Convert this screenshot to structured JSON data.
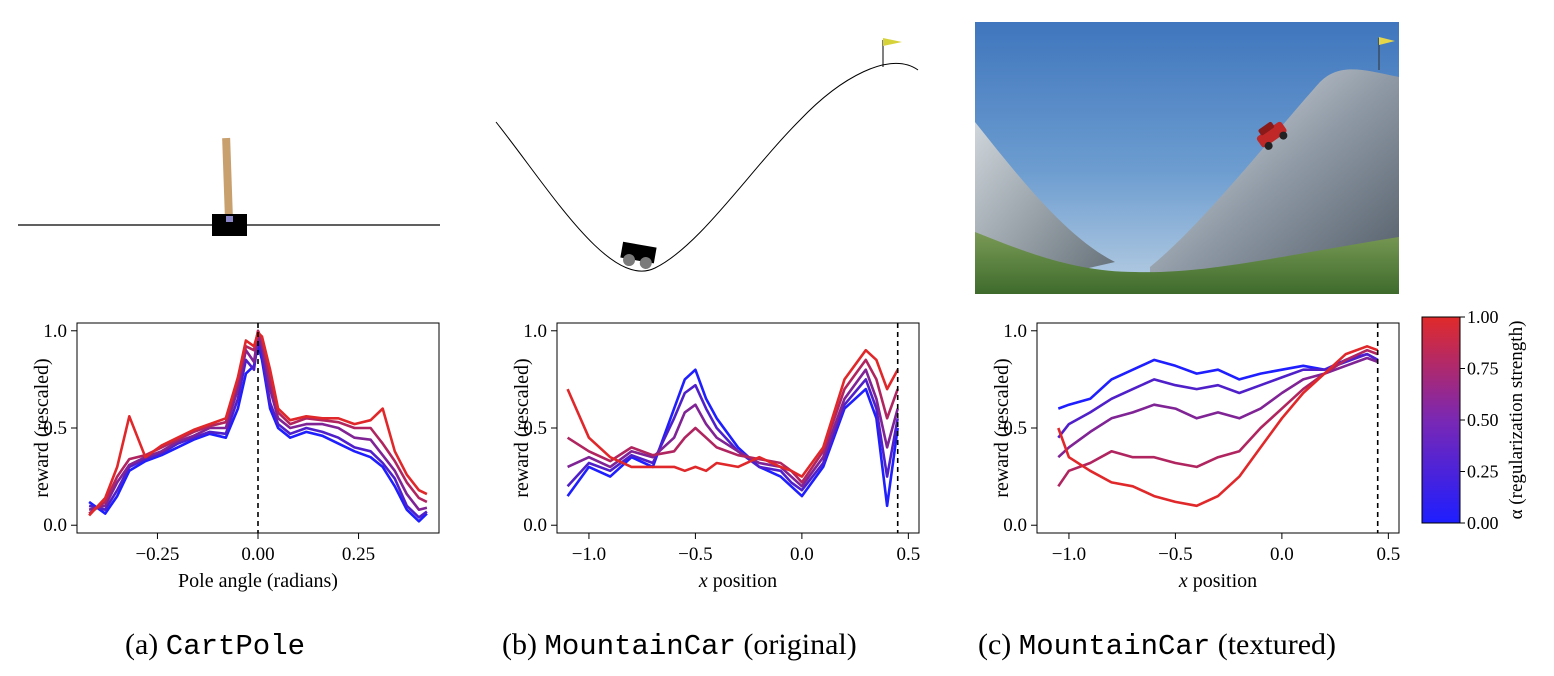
{
  "panels": [
    {
      "letter": "(a)",
      "env": "CartPole",
      "suffix": ""
    },
    {
      "letter": "(b)",
      "env": "MountainCar",
      "suffix": "(original)"
    },
    {
      "letter": "(c)",
      "env": "MountainCar",
      "suffix": "(textured)"
    }
  ],
  "colorbar": {
    "label": "α (regularization strength)",
    "ticks": [
      "0.00",
      "0.25",
      "0.50",
      "0.75",
      "1.00"
    ],
    "color_low": "#1e1eff",
    "color_high": "#e02a2a"
  },
  "chart_data": [
    {
      "type": "line",
      "id": "cartpole",
      "xlabel": "Pole angle (radians)",
      "ylabel": "reward (rescaled)",
      "xlim": [
        -0.45,
        0.45
      ],
      "ylim": [
        -0.04,
        1.04
      ],
      "xticks": [
        -0.25,
        0.0,
        0.25
      ],
      "xtick_labels": [
        "−0.25",
        "0.00",
        "0.25"
      ],
      "yticks": [
        0.0,
        0.5,
        1.0
      ],
      "ytick_labels": [
        "0.0",
        "0.5",
        "1.0"
      ],
      "vline_x": 0.0,
      "series": [
        {
          "alpha": 0.0,
          "x": [
            -0.42,
            -0.38,
            -0.35,
            -0.32,
            -0.28,
            -0.24,
            -0.2,
            -0.16,
            -0.12,
            -0.08,
            -0.05,
            -0.03,
            -0.01,
            0.0,
            0.01,
            0.03,
            0.05,
            0.08,
            0.12,
            0.16,
            0.2,
            0.24,
            0.28,
            0.31,
            0.34,
            0.37,
            0.4,
            0.42
          ],
          "y": [
            0.12,
            0.06,
            0.15,
            0.28,
            0.33,
            0.36,
            0.4,
            0.44,
            0.47,
            0.45,
            0.6,
            0.78,
            0.82,
            0.93,
            0.85,
            0.6,
            0.5,
            0.45,
            0.48,
            0.46,
            0.42,
            0.38,
            0.35,
            0.3,
            0.2,
            0.08,
            0.02,
            0.06
          ]
        },
        {
          "alpha": 0.25,
          "x": [
            -0.42,
            -0.38,
            -0.35,
            -0.32,
            -0.28,
            -0.24,
            -0.2,
            -0.16,
            -0.12,
            -0.08,
            -0.05,
            -0.03,
            -0.01,
            0.0,
            0.01,
            0.03,
            0.05,
            0.08,
            0.12,
            0.16,
            0.2,
            0.24,
            0.28,
            0.31,
            0.34,
            0.37,
            0.4,
            0.42
          ],
          "y": [
            0.1,
            0.08,
            0.18,
            0.3,
            0.34,
            0.37,
            0.42,
            0.45,
            0.48,
            0.47,
            0.65,
            0.85,
            0.8,
            0.96,
            0.88,
            0.63,
            0.52,
            0.47,
            0.5,
            0.48,
            0.45,
            0.4,
            0.38,
            0.32,
            0.24,
            0.1,
            0.04,
            0.07
          ]
        },
        {
          "alpha": 0.5,
          "x": [
            -0.42,
            -0.38,
            -0.35,
            -0.32,
            -0.28,
            -0.24,
            -0.2,
            -0.16,
            -0.12,
            -0.08,
            -0.05,
            -0.03,
            -0.01,
            0.0,
            0.01,
            0.03,
            0.05,
            0.08,
            0.12,
            0.16,
            0.2,
            0.24,
            0.28,
            0.31,
            0.34,
            0.37,
            0.4,
            0.42
          ],
          "y": [
            0.08,
            0.1,
            0.22,
            0.31,
            0.35,
            0.38,
            0.43,
            0.46,
            0.5,
            0.5,
            0.7,
            0.9,
            0.84,
            0.98,
            0.92,
            0.7,
            0.55,
            0.5,
            0.52,
            0.52,
            0.5,
            0.45,
            0.44,
            0.36,
            0.28,
            0.16,
            0.08,
            0.09
          ]
        },
        {
          "alpha": 0.75,
          "x": [
            -0.42,
            -0.38,
            -0.35,
            -0.32,
            -0.28,
            -0.24,
            -0.2,
            -0.16,
            -0.12,
            -0.08,
            -0.05,
            -0.03,
            -0.01,
            0.0,
            0.01,
            0.03,
            0.05,
            0.08,
            0.12,
            0.16,
            0.2,
            0.24,
            0.28,
            0.31,
            0.34,
            0.37,
            0.4,
            0.42
          ],
          "y": [
            0.06,
            0.12,
            0.25,
            0.34,
            0.36,
            0.4,
            0.44,
            0.48,
            0.51,
            0.53,
            0.74,
            0.92,
            0.9,
            1.0,
            0.95,
            0.75,
            0.58,
            0.52,
            0.55,
            0.54,
            0.53,
            0.5,
            0.5,
            0.42,
            0.33,
            0.22,
            0.14,
            0.12
          ]
        },
        {
          "alpha": 1.0,
          "x": [
            -0.42,
            -0.38,
            -0.35,
            -0.32,
            -0.28,
            -0.24,
            -0.2,
            -0.16,
            -0.12,
            -0.08,
            -0.05,
            -0.03,
            -0.01,
            0.0,
            0.01,
            0.03,
            0.05,
            0.08,
            0.12,
            0.16,
            0.2,
            0.24,
            0.28,
            0.31,
            0.34,
            0.37,
            0.4,
            0.42
          ],
          "y": [
            0.05,
            0.14,
            0.3,
            0.56,
            0.35,
            0.41,
            0.45,
            0.49,
            0.52,
            0.55,
            0.76,
            0.95,
            0.92,
            0.99,
            0.97,
            0.8,
            0.6,
            0.54,
            0.56,
            0.55,
            0.55,
            0.52,
            0.54,
            0.6,
            0.38,
            0.26,
            0.18,
            0.16
          ]
        }
      ]
    },
    {
      "type": "line",
      "id": "mountaincar-original",
      "xlabel": "x position",
      "ylabel": "reward (rescaled)",
      "xlim": [
        -1.15,
        0.55
      ],
      "ylim": [
        -0.04,
        1.04
      ],
      "xticks": [
        -1.0,
        -0.5,
        0.0,
        0.5
      ],
      "xtick_labels": [
        "−1.0",
        "−0.5",
        "0.0",
        "0.5"
      ],
      "yticks": [
        0.0,
        0.5,
        1.0
      ],
      "ytick_labels": [
        "0.0",
        "0.5",
        "1.0"
      ],
      "vline_x": 0.45,
      "series": [
        {
          "alpha": 0.0,
          "x": [
            -1.1,
            -1.0,
            -0.9,
            -0.8,
            -0.7,
            -0.6,
            -0.55,
            -0.5,
            -0.45,
            -0.4,
            -0.3,
            -0.2,
            -0.1,
            -0.05,
            0.0,
            0.1,
            0.2,
            0.3,
            0.35,
            0.4,
            0.45
          ],
          "y": [
            0.15,
            0.3,
            0.25,
            0.35,
            0.3,
            0.6,
            0.75,
            0.8,
            0.65,
            0.55,
            0.4,
            0.3,
            0.25,
            0.2,
            0.15,
            0.3,
            0.6,
            0.7,
            0.55,
            0.1,
            0.5
          ]
        },
        {
          "alpha": 0.25,
          "x": [
            -1.1,
            -1.0,
            -0.9,
            -0.8,
            -0.7,
            -0.6,
            -0.55,
            -0.5,
            -0.45,
            -0.4,
            -0.3,
            -0.2,
            -0.1,
            -0.05,
            0.0,
            0.1,
            0.2,
            0.3,
            0.35,
            0.4,
            0.45
          ],
          "y": [
            0.2,
            0.32,
            0.28,
            0.36,
            0.32,
            0.55,
            0.68,
            0.72,
            0.6,
            0.5,
            0.38,
            0.3,
            0.28,
            0.22,
            0.18,
            0.32,
            0.62,
            0.75,
            0.6,
            0.25,
            0.55
          ]
        },
        {
          "alpha": 0.5,
          "x": [
            -1.1,
            -1.0,
            -0.9,
            -0.8,
            -0.7,
            -0.6,
            -0.55,
            -0.5,
            -0.45,
            -0.4,
            -0.3,
            -0.2,
            -0.1,
            -0.05,
            0.0,
            0.1,
            0.2,
            0.3,
            0.35,
            0.4,
            0.45
          ],
          "y": [
            0.3,
            0.35,
            0.3,
            0.38,
            0.35,
            0.45,
            0.58,
            0.62,
            0.52,
            0.45,
            0.38,
            0.32,
            0.3,
            0.25,
            0.2,
            0.35,
            0.65,
            0.8,
            0.65,
            0.4,
            0.6
          ]
        },
        {
          "alpha": 0.75,
          "x": [
            -1.1,
            -1.0,
            -0.9,
            -0.8,
            -0.7,
            -0.6,
            -0.55,
            -0.5,
            -0.45,
            -0.4,
            -0.3,
            -0.2,
            -0.1,
            -0.05,
            0.0,
            0.1,
            0.2,
            0.3,
            0.35,
            0.4,
            0.45
          ],
          "y": [
            0.45,
            0.38,
            0.33,
            0.4,
            0.36,
            0.38,
            0.45,
            0.5,
            0.45,
            0.4,
            0.36,
            0.34,
            0.32,
            0.28,
            0.22,
            0.38,
            0.7,
            0.85,
            0.75,
            0.55,
            0.7
          ]
        },
        {
          "alpha": 1.0,
          "x": [
            -1.1,
            -1.0,
            -0.9,
            -0.8,
            -0.7,
            -0.6,
            -0.55,
            -0.5,
            -0.45,
            -0.4,
            -0.3,
            -0.2,
            -0.1,
            -0.05,
            0.0,
            0.1,
            0.2,
            0.3,
            0.35,
            0.4,
            0.45
          ],
          "y": [
            0.7,
            0.45,
            0.35,
            0.3,
            0.3,
            0.3,
            0.28,
            0.3,
            0.28,
            0.32,
            0.3,
            0.35,
            0.3,
            0.28,
            0.25,
            0.4,
            0.75,
            0.9,
            0.85,
            0.7,
            0.8
          ]
        }
      ]
    },
    {
      "type": "line",
      "id": "mountaincar-textured",
      "xlabel": "x position",
      "ylabel": "reward (rescaled)",
      "xlim": [
        -1.15,
        0.55
      ],
      "ylim": [
        -0.04,
        1.04
      ],
      "xticks": [
        -1.0,
        -0.5,
        0.0,
        0.5
      ],
      "xtick_labels": [
        "−1.0",
        "−0.5",
        "0.0",
        "0.5"
      ],
      "yticks": [
        0.0,
        0.5,
        1.0
      ],
      "ytick_labels": [
        "0.0",
        "0.5",
        "1.0"
      ],
      "vline_x": 0.45,
      "series": [
        {
          "alpha": 0.0,
          "x": [
            -1.05,
            -1.0,
            -0.9,
            -0.8,
            -0.7,
            -0.6,
            -0.5,
            -0.4,
            -0.3,
            -0.2,
            -0.1,
            0.0,
            0.1,
            0.2,
            0.3,
            0.4,
            0.45
          ],
          "y": [
            0.6,
            0.62,
            0.65,
            0.75,
            0.8,
            0.85,
            0.82,
            0.78,
            0.8,
            0.75,
            0.78,
            0.8,
            0.82,
            0.8,
            0.85,
            0.88,
            0.85
          ]
        },
        {
          "alpha": 0.25,
          "x": [
            -1.05,
            -1.0,
            -0.9,
            -0.8,
            -0.7,
            -0.6,
            -0.5,
            -0.4,
            -0.3,
            -0.2,
            -0.1,
            0.0,
            0.1,
            0.2,
            0.3,
            0.4,
            0.45
          ],
          "y": [
            0.45,
            0.52,
            0.58,
            0.65,
            0.7,
            0.75,
            0.72,
            0.7,
            0.72,
            0.68,
            0.72,
            0.76,
            0.8,
            0.8,
            0.84,
            0.88,
            0.85
          ]
        },
        {
          "alpha": 0.5,
          "x": [
            -1.05,
            -1.0,
            -0.9,
            -0.8,
            -0.7,
            -0.6,
            -0.5,
            -0.4,
            -0.3,
            -0.2,
            -0.1,
            0.0,
            0.1,
            0.2,
            0.3,
            0.4,
            0.45
          ],
          "y": [
            0.35,
            0.4,
            0.48,
            0.55,
            0.58,
            0.62,
            0.6,
            0.55,
            0.58,
            0.55,
            0.6,
            0.68,
            0.75,
            0.78,
            0.82,
            0.86,
            0.84
          ]
        },
        {
          "alpha": 0.75,
          "x": [
            -1.05,
            -1.0,
            -0.9,
            -0.8,
            -0.7,
            -0.6,
            -0.5,
            -0.4,
            -0.3,
            -0.2,
            -0.1,
            0.0,
            0.1,
            0.2,
            0.3,
            0.4,
            0.45
          ],
          "y": [
            0.2,
            0.28,
            0.32,
            0.38,
            0.35,
            0.35,
            0.32,
            0.3,
            0.35,
            0.38,
            0.5,
            0.6,
            0.7,
            0.78,
            0.85,
            0.9,
            0.88
          ]
        },
        {
          "alpha": 1.0,
          "x": [
            -1.05,
            -1.0,
            -0.9,
            -0.8,
            -0.7,
            -0.6,
            -0.5,
            -0.4,
            -0.3,
            -0.2,
            -0.1,
            0.0,
            0.1,
            0.2,
            0.3,
            0.4,
            0.45
          ],
          "y": [
            0.5,
            0.35,
            0.28,
            0.22,
            0.2,
            0.15,
            0.12,
            0.1,
            0.15,
            0.25,
            0.4,
            0.55,
            0.68,
            0.78,
            0.88,
            0.92,
            0.9
          ]
        }
      ]
    }
  ]
}
